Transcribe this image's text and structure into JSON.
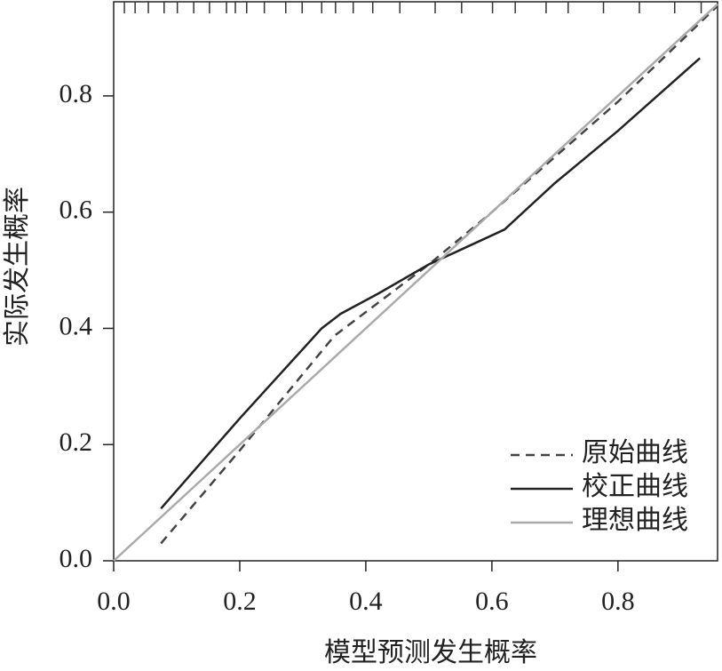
{
  "chart_data": {
    "type": "line",
    "xlabel": "模型预测发生概率",
    "ylabel": "实际发生概率",
    "xlim": [
      0,
      0.958
    ],
    "ylim": [
      0,
      0.962
    ],
    "xticks": [
      {
        "value": 0,
        "label": "0.0"
      },
      0.2,
      0.4,
      0.6,
      0.8
    ],
    "yticks": [
      {
        "value": 0,
        "label": "0.0"
      },
      0.2,
      0.4,
      0.6,
      0.8
    ],
    "rug": [
      0.017,
      0.034,
      0.055,
      0.08,
      0.101,
      0.127,
      0.152,
      0.179,
      0.193,
      0.211,
      0.239,
      0.273,
      0.299,
      0.33,
      0.352,
      0.38,
      0.411,
      0.454,
      0.51,
      0.552,
      0.601,
      0.637,
      0.686,
      0.721,
      0.777,
      0.834,
      0.89,
      0.932
    ],
    "series": [
      {
        "name": "原始曲线",
        "color": "#444444",
        "dash": true,
        "x": [
          0.075,
          0.2,
          0.35,
          0.5,
          0.6,
          0.8,
          0.958
        ],
        "values": [
          0.03,
          0.19,
          0.387,
          0.51,
          0.6,
          0.79,
          0.955
        ]
      },
      {
        "name": "校正曲线",
        "color": "#222222",
        "dash": false,
        "x": [
          0.075,
          0.2,
          0.33,
          0.36,
          0.42,
          0.5,
          0.55,
          0.62,
          0.7,
          0.8,
          0.93
        ],
        "values": [
          0.09,
          0.245,
          0.4,
          0.425,
          0.46,
          0.51,
          0.535,
          0.57,
          0.65,
          0.74,
          0.865
        ]
      },
      {
        "name": "理想曲线",
        "color": "#aaaaaa",
        "dash": false,
        "x": [
          0,
          0.958
        ],
        "values": [
          0,
          0.958
        ]
      }
    ]
  }
}
